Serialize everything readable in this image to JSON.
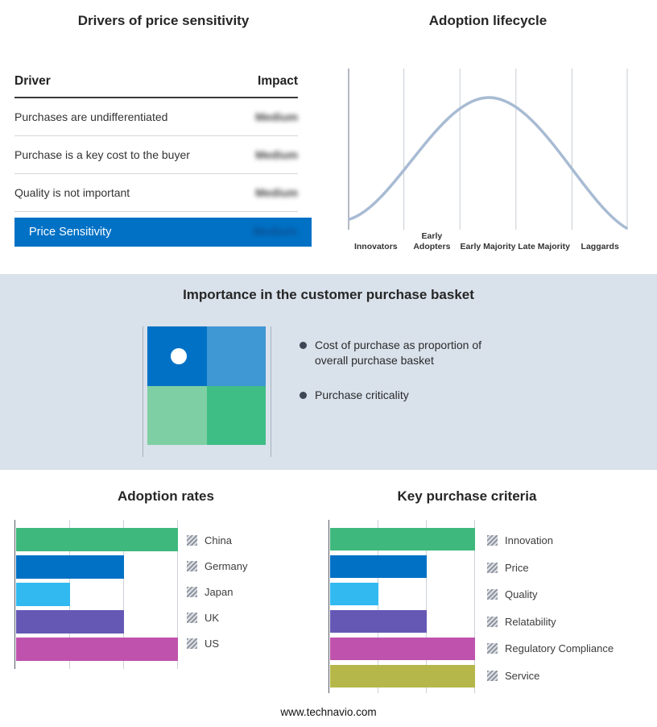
{
  "colors": {
    "accent_blue": "#0071c5",
    "band_background": "#d9e1eb",
    "curve": "#a8bbd3",
    "matrix": [
      "#0071c5",
      "#3f97d4",
      "#7ecfa3",
      "#3ebd85"
    ],
    "bullet_dot": "#3d4654"
  },
  "drivers": {
    "title": "Drivers of price sensitivity",
    "columns": {
      "driver": "Driver",
      "impact": "Impact"
    },
    "impact_values_blurred": true,
    "rows": [
      {
        "driver": "Purchases are undifferentiated",
        "impact": "Medium"
      },
      {
        "driver": "Purchase is a key cost to the buyer",
        "impact": "Medium"
      },
      {
        "driver": "Quality is not important",
        "impact": "Medium"
      }
    ],
    "summary": {
      "label": "Price Sensitivity",
      "impact": "Medium"
    }
  },
  "basket": {
    "title": "Importance in the customer purchase basket",
    "bullets": [
      "Cost of purchase as proportion of overall purchase basket",
      "Purchase criticality"
    ],
    "marker_quadrant": "top-left"
  },
  "footer": {
    "url": "www.technavio.com"
  },
  "chart_data": [
    {
      "type": "line",
      "title": "Adoption lifecycle",
      "shape": "bell-curve",
      "categories": [
        "Innovators",
        "Early Adopters",
        "Early Majority",
        "Late Majority",
        "Laggards"
      ],
      "peak_category": "Early Majority",
      "grid": true,
      "legend_position": "none"
    },
    {
      "type": "bar",
      "orientation": "horizontal",
      "title": "Adoption rates",
      "categories": [
        "China",
        "Germany",
        "Japan",
        "UK",
        "US"
      ],
      "values": [
        3,
        2,
        1,
        2,
        3
      ],
      "xlim": [
        0,
        3
      ],
      "grid": true,
      "colors": [
        "#3eb87d",
        "#0071c5",
        "#31b9f0",
        "#6558b5",
        "#bf52ad"
      ],
      "legend_position": "right"
    },
    {
      "type": "bar",
      "orientation": "horizontal",
      "title": "Key purchase criteria",
      "categories": [
        "Innovation",
        "Price",
        "Quality",
        "Relatability",
        "Regulatory Compliance",
        "Service"
      ],
      "values": [
        3,
        2,
        1,
        2,
        3,
        3
      ],
      "xlim": [
        0,
        3
      ],
      "grid": true,
      "colors": [
        "#3eb87d",
        "#0071c5",
        "#31b9f0",
        "#6558b5",
        "#bf52ad",
        "#b6b74a"
      ],
      "legend_position": "right"
    }
  ]
}
